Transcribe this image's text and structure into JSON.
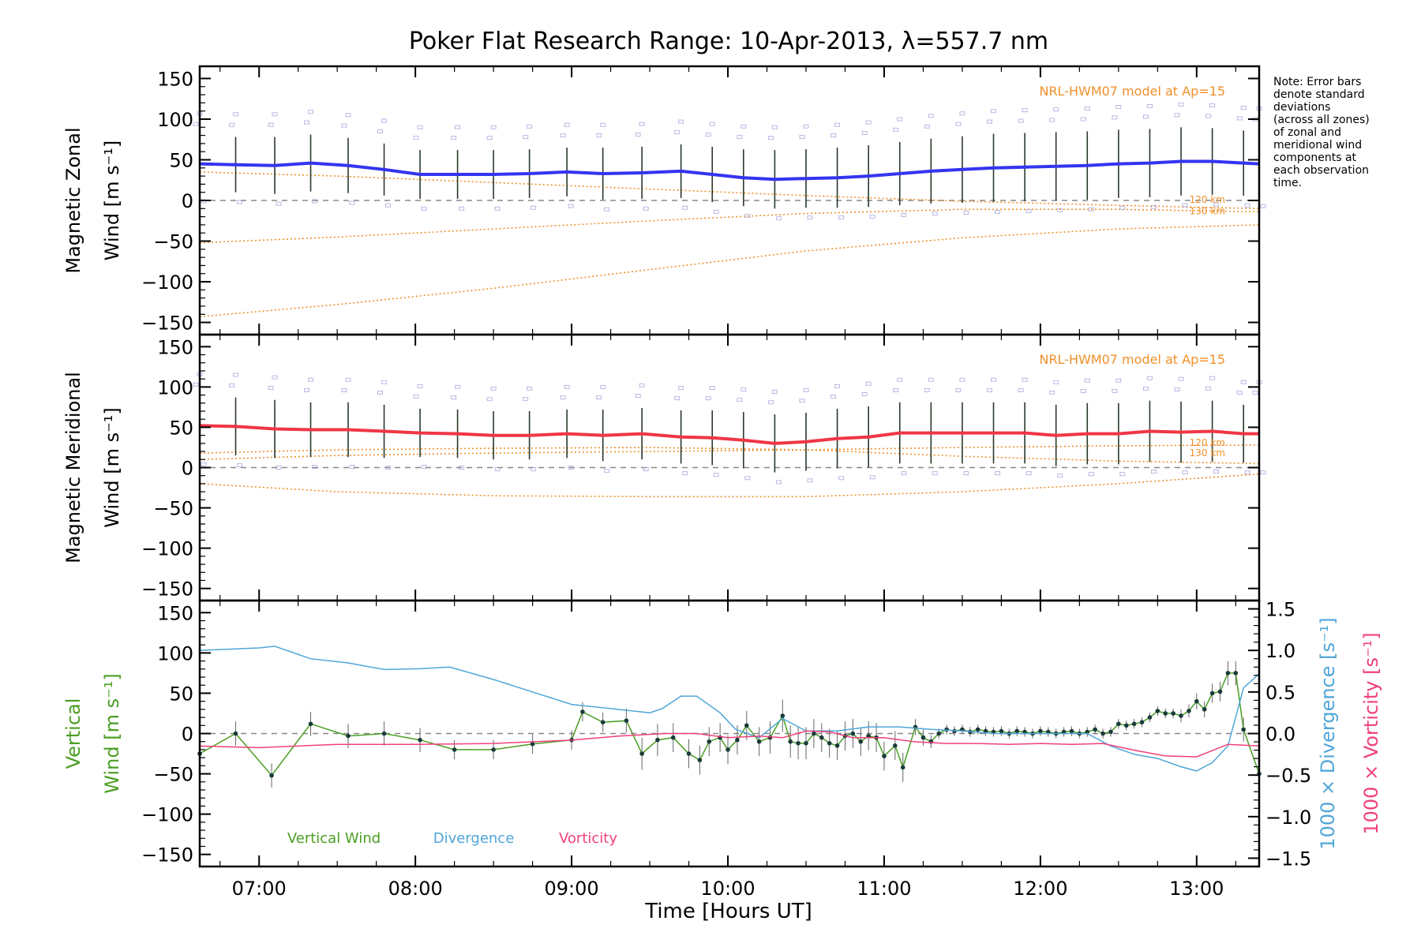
{
  "chart_data": {
    "type": "line",
    "title": "Poker Flat Research Range: 10-Apr-2013, λ=557.7 nm",
    "xlabel": "Time [Hours UT]",
    "xlim": [
      6.62,
      13.4
    ],
    "x_ticks": [
      {
        "value": 7,
        "label": "07:00"
      },
      {
        "value": 8,
        "label": "08:00"
      },
      {
        "value": 9,
        "label": "09:00"
      },
      {
        "value": 10,
        "label": "10:00"
      },
      {
        "value": 11,
        "label": "11:00"
      },
      {
        "value": 12,
        "label": "12:00"
      },
      {
        "value": 13,
        "label": "13:00"
      }
    ],
    "y_ticks": [
      {
        "value": 150,
        "label": "150"
      },
      {
        "value": 100,
        "label": "100"
      },
      {
        "value": 50,
        "label": "50"
      },
      {
        "value": 0,
        "label": "0"
      },
      {
        "value": -50,
        "label": "−050"
      },
      {
        "value": -100,
        "label": "−100"
      },
      {
        "value": -150,
        "label": "−150"
      }
    ],
    "note": [
      "Note: Error bars",
      "denote standard",
      "deviations",
      "(across all zones)",
      "of zonal and",
      "meridional wind",
      "components at",
      "each observation",
      "time."
    ],
    "colors": {
      "zonal": "#3434f0",
      "meridional": "#f03646",
      "model": "#f0902a",
      "vertical": "#4a9e22",
      "divergence": "#4fa6d8",
      "vorticity": "#f0407a",
      "zone_points": "#9a9ad8",
      "errorbar": "#2a3a2a",
      "zero": "#888888"
    },
    "panels": [
      {
        "name": "zonal",
        "ylabel_line1": "Magnetic Zonal",
        "ylabel_line2": "Wind [m s⁻¹]",
        "ylim": [
          -165,
          165
        ],
        "model_label": "NRL-HWM07 model at Ap=15",
        "model_alt_labels": [
          "120 km",
          "130 km"
        ],
        "series": [
          {
            "name": "Magnetic Zonal Wind",
            "x": [
              6.62,
              6.85,
              7.1,
              7.33,
              7.57,
              7.8,
              8.03,
              8.27,
              8.5,
              8.73,
              8.97,
              9.2,
              9.45,
              9.7,
              9.9,
              10.1,
              10.3,
              10.5,
              10.7,
              10.9,
              11.1,
              11.3,
              11.5,
              11.7,
              11.9,
              12.1,
              12.3,
              12.5,
              12.7,
              12.9,
              13.1,
              13.3,
              13.4
            ],
            "values": [
              45,
              44,
              43,
              46,
              43,
              38,
              32,
              32,
              32,
              33,
              35,
              33,
              34,
              36,
              32,
              28,
              26,
              27,
              28,
              30,
              33,
              36,
              38,
              40,
              41,
              42,
              43,
              45,
              46,
              48,
              48,
              46,
              45
            ],
            "errors": [
              34,
              34,
              35,
              35,
              34,
              32,
              30,
              30,
              30,
              30,
              30,
              32,
              32,
              33,
              34,
              35,
              36,
              36,
              37,
              38,
              39,
              40,
              41,
              42,
              42,
              42,
              42,
              42,
              42,
              42,
              41,
              40,
              40
            ]
          }
        ],
        "model_lines": [
          {
            "name": "120 km",
            "x": [
              6.62,
              7.5,
              8.5,
              9.5,
              10.5,
              11.5,
              12.5,
              13.4
            ],
            "values": [
              35,
              30,
              22,
              14,
              6,
              -1,
              -6,
              -10
            ]
          },
          {
            "name": "130 km",
            "x": [
              6.62,
              7.5,
              8.5,
              9.5,
              10.5,
              11.5,
              12.5,
              13.4
            ],
            "values": [
              -52,
              -45,
              -35,
              -25,
              -16,
              -11,
              -11,
              -14
            ]
          },
          {
            "name": "model-low",
            "x": [
              6.62,
              7.5,
              8.5,
              9.5,
              10.5,
              11.5,
              12.5,
              13.4
            ],
            "values": [
              -143,
              -128,
              -108,
              -85,
              -62,
              -46,
              -35,
              -30
            ]
          }
        ]
      },
      {
        "name": "meridional",
        "ylabel_line1": "Magnetic Meridional",
        "ylabel_line2": "Wind [m s⁻¹]",
        "ylim": [
          -165,
          165
        ],
        "model_label": "NRL-HWM07 model at Ap=15",
        "model_alt_labels": [
          "120 km",
          "130 km"
        ],
        "series": [
          {
            "name": "Magnetic Meridional Wind",
            "x": [
              6.62,
              6.85,
              7.1,
              7.33,
              7.57,
              7.8,
              8.03,
              8.27,
              8.5,
              8.73,
              8.97,
              9.2,
              9.45,
              9.7,
              9.9,
              10.1,
              10.3,
              10.5,
              10.7,
              10.9,
              11.1,
              11.3,
              11.5,
              11.7,
              11.9,
              12.1,
              12.3,
              12.5,
              12.7,
              12.9,
              13.1,
              13.3,
              13.4
            ],
            "values": [
              52,
              51,
              48,
              47,
              47,
              45,
              43,
              42,
              40,
              40,
              42,
              40,
              42,
              38,
              37,
              34,
              30,
              32,
              36,
              38,
              43,
              43,
              43,
              43,
              43,
              40,
              42,
              42,
              45,
              44,
              45,
              42,
              42
            ],
            "errors": [
              36,
              36,
              36,
              34,
              34,
              33,
              30,
              30,
              30,
              30,
              30,
              32,
              32,
              33,
              34,
              35,
              36,
              36,
              37,
              38,
              38,
              38,
              38,
              38,
              38,
              38,
              38,
              38,
              38,
              38,
              38,
              36,
              36
            ]
          }
        ],
        "model_lines": [
          {
            "name": "120 km",
            "x": [
              6.62,
              7.5,
              8.5,
              9.5,
              10.5,
              11.5,
              12.5,
              13.4
            ],
            "values": [
              10,
              15,
              18,
              20,
              22,
              25,
              27,
              28
            ]
          },
          {
            "name": "130 km",
            "x": [
              6.62,
              7.5,
              8.5,
              9.5,
              10.5,
              11.5,
              12.5,
              13.4
            ],
            "values": [
              18,
              22,
              24,
              25,
              22,
              14,
              8,
              5
            ]
          },
          {
            "name": "model-low",
            "x": [
              6.62,
              7.5,
              8.5,
              9.5,
              10.5,
              11.5,
              12.5,
              13.4
            ],
            "values": [
              -20,
              -30,
              -35,
              -36,
              -36,
              -30,
              -20,
              -8
            ]
          }
        ]
      },
      {
        "name": "vertical",
        "ylabel_line1": "Vertical",
        "ylabel_line2": "Wind [m s⁻¹]",
        "ylim": [
          -165,
          165
        ],
        "right_axis": {
          "ylim": [
            -1.6,
            1.6
          ],
          "ticks": [
            {
              "value": 1.5,
              "label": "1.5"
            },
            {
              "value": 1.0,
              "label": "1.0"
            },
            {
              "value": 0.5,
              "label": "0.5"
            },
            {
              "value": 0.0,
              "label": "0.0"
            },
            {
              "value": -0.5,
              "label": "−0.5"
            },
            {
              "value": -1.0,
              "label": "−1.0"
            },
            {
              "value": -1.5,
              "label": "−1.5"
            }
          ],
          "label_divergence": "1000 × Divergence [s⁻¹]",
          "label_vorticity": "1000 × Vorticity [s⁻¹]"
        },
        "legend": [
          "Vertical Wind",
          "Divergence",
          "Vorticity"
        ],
        "series": [
          {
            "name": "Vertical Wind",
            "axis": "left",
            "x": [
              6.62,
              6.85,
              7.08,
              7.33,
              7.57,
              7.8,
              8.03,
              8.25,
              8.5,
              8.75,
              9.0,
              9.07,
              9.2,
              9.35,
              9.45,
              9.55,
              9.65,
              9.75,
              9.82,
              9.88,
              9.95,
              10.0,
              10.06,
              10.12,
              10.2,
              10.27,
              10.35,
              10.4,
              10.45,
              10.5,
              10.55,
              10.6,
              10.65,
              10.7,
              10.75,
              10.8,
              10.85,
              10.9,
              10.95,
              11.0,
              11.07,
              11.12,
              11.2,
              11.25,
              11.3,
              11.35,
              11.4,
              11.45,
              11.5,
              11.55,
              11.6,
              11.65,
              11.7,
              11.75,
              11.8,
              11.85,
              11.9,
              11.95,
              12.0,
              12.05,
              12.1,
              12.15,
              12.2,
              12.25,
              12.3,
              12.35,
              12.4,
              12.45,
              12.5,
              12.55,
              12.6,
              12.65,
              12.7,
              12.75,
              12.8,
              12.85,
              12.9,
              12.95,
              13.0,
              13.05,
              13.1,
              13.15,
              13.2,
              13.25,
              13.3,
              13.4
            ],
            "values": [
              -25,
              0,
              -52,
              12,
              -3,
              0,
              -8,
              -20,
              -20,
              -13,
              -8,
              27,
              14,
              16,
              -25,
              -8,
              -5,
              -25,
              -33,
              -10,
              -5,
              -20,
              -8,
              10,
              -10,
              -5,
              22,
              -10,
              -12,
              -12,
              0,
              -5,
              -12,
              -15,
              -3,
              0,
              -10,
              -3,
              -5,
              -28,
              -15,
              -42,
              8,
              -5,
              -10,
              0,
              5,
              3,
              5,
              2,
              5,
              3,
              2,
              3,
              0,
              3,
              2,
              0,
              3,
              2,
              0,
              2,
              3,
              0,
              2,
              5,
              0,
              2,
              12,
              10,
              12,
              14,
              20,
              28,
              25,
              25,
              22,
              28,
              40,
              30,
              50,
              52,
              75,
              75,
              5,
              -50
            ],
            "errors": [
              15,
              15,
              15,
              15,
              15,
              15,
              15,
              12,
              12,
              12,
              12,
              12,
              12,
              15,
              20,
              20,
              18,
              18,
              18,
              18,
              18,
              18,
              18,
              18,
              18,
              20,
              20,
              20,
              20,
              20,
              18,
              18,
              18,
              18,
              18,
              18,
              18,
              18,
              18,
              18,
              18,
              18,
              10,
              10,
              8,
              6,
              6,
              6,
              6,
              6,
              6,
              6,
              6,
              6,
              6,
              6,
              6,
              6,
              6,
              6,
              6,
              6,
              6,
              6,
              6,
              6,
              6,
              6,
              6,
              6,
              6,
              6,
              6,
              6,
              6,
              6,
              8,
              8,
              10,
              10,
              12,
              12,
              15,
              15,
              15,
              15
            ]
          },
          {
            "name": "Divergence",
            "axis": "right",
            "x": [
              6.62,
              7.0,
              7.1,
              7.33,
              7.57,
              7.8,
              8.03,
              8.22,
              8.5,
              8.75,
              9.0,
              9.25,
              9.5,
              9.58,
              9.7,
              9.8,
              9.95,
              10.05,
              10.2,
              10.35,
              10.5,
              10.7,
              10.9,
              11.1,
              11.3,
              11.5,
              11.7,
              11.9,
              12.1,
              12.3,
              12.45,
              12.6,
              12.75,
              12.9,
              13.0,
              13.1,
              13.2,
              13.3,
              13.4
            ],
            "values": [
              1.0,
              1.03,
              1.05,
              0.9,
              0.85,
              0.77,
              0.78,
              0.8,
              0.65,
              0.5,
              0.35,
              0.3,
              0.25,
              0.3,
              0.45,
              0.45,
              0.25,
              0.05,
              -0.05,
              0.18,
              0.03,
              0.03,
              0.08,
              0.08,
              0.05,
              0.03,
              0.0,
              0.0,
              0.0,
              0.0,
              -0.15,
              -0.25,
              -0.3,
              -0.4,
              -0.45,
              -0.35,
              -0.15,
              0.55,
              0.72
            ]
          },
          {
            "name": "Vorticity",
            "axis": "right",
            "x": [
              6.62,
              7.0,
              7.5,
              8.0,
              8.5,
              9.0,
              9.3,
              9.6,
              9.8,
              10.0,
              10.2,
              10.35,
              10.5,
              10.65,
              10.8,
              11.0,
              11.2,
              11.4,
              11.6,
              11.8,
              12.0,
              12.2,
              12.4,
              12.6,
              12.8,
              13.0,
              13.2,
              13.4
            ],
            "values": [
              -0.15,
              -0.17,
              -0.13,
              -0.13,
              -0.12,
              -0.08,
              -0.03,
              0.0,
              0.0,
              -0.05,
              -0.03,
              -0.05,
              0.03,
              0.02,
              -0.05,
              -0.05,
              -0.1,
              -0.12,
              -0.12,
              -0.13,
              -0.12,
              -0.13,
              -0.12,
              -0.2,
              -0.27,
              -0.28,
              -0.13,
              -0.15
            ]
          }
        ]
      }
    ]
  }
}
